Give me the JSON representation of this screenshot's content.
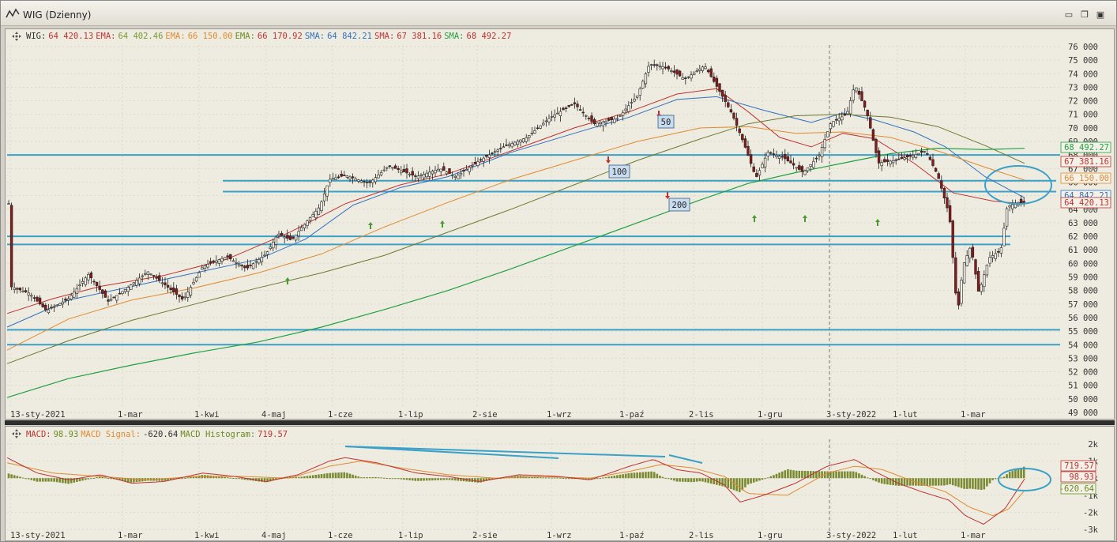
{
  "window": {
    "title": "WIG (Dzienny)",
    "controls": [
      "minimize",
      "restore",
      "close"
    ]
  },
  "legend_price": [
    {
      "label": "WIG:",
      "value": "64 420.13",
      "color": "#c03030",
      "labelColor": "#303030"
    },
    {
      "label": "EMA:",
      "value": "64 402.46",
      "color": "#7a9a30",
      "labelColor": "#c03030"
    },
    {
      "label": "EMA:",
      "value": "66 150.00",
      "color": "#e08a30",
      "labelColor": "#e08a30"
    },
    {
      "label": "EMA:",
      "value": "66 170.92",
      "color": "#c03030",
      "labelColor": "#6a8a20"
    },
    {
      "label": "SMA:",
      "value": "64 842.21",
      "color": "#3070c0",
      "labelColor": "#3070c0"
    },
    {
      "label": "SMA:",
      "value": "67 381.16",
      "color": "#c03030",
      "labelColor": "#c03030"
    },
    {
      "label": "SMA:",
      "value": "68 492.27",
      "color": "#c03030",
      "labelColor": "#20a040"
    }
  ],
  "legend_macd": [
    {
      "label": "MACD:",
      "value": "98.93",
      "color": "#6a8a20",
      "labelColor": "#c03030"
    },
    {
      "label": "MACD Signal:",
      "value": "-620.64",
      "color": "#303030",
      "labelColor": "#e08a30"
    },
    {
      "label": "MACD Histogram:",
      "value": "719.57",
      "color": "#c03030",
      "labelColor": "#6a8a20"
    }
  ],
  "x_tick_labels": [
    "13-sty-2021",
    "1-mar",
    "1-kwi",
    "4-maj",
    "1-cze",
    "1-lip",
    "2-sie",
    "1-wrz",
    "1-paź",
    "2-lis",
    "1-gru",
    "3-sty-2022",
    "1-lut",
    "1-mar"
  ],
  "price_axis_labels": [
    "76 000",
    "75 000",
    "74 000",
    "73 000",
    "72 000",
    "71 000",
    "70 000",
    "69 000",
    "68 000",
    "67 000",
    "66 000",
    "65 000",
    "64 000",
    "63 000",
    "62 000",
    "61 000",
    "60 000",
    "59 000",
    "58 000",
    "57 000",
    "56 000",
    "55 000",
    "54 000",
    "53 000",
    "52 000",
    "51 000",
    "50 000",
    "49 000"
  ],
  "macd_axis_labels": [
    "2k",
    "1k",
    "0k",
    "-1k",
    "-2k",
    "-3k"
  ],
  "price_badges": [
    {
      "text": "68 492.27",
      "color": "#20a040"
    },
    {
      "text": "67 381.16",
      "color": "#c03030"
    },
    {
      "text": "66 150.00",
      "color": "#e08a30"
    },
    {
      "text": "64 842.21",
      "color": "#3070c0"
    },
    {
      "text": "64 420.13",
      "color": "#c03030"
    }
  ],
  "macd_badges": [
    {
      "text": "719.57",
      "color": "#c03030"
    },
    {
      "text": "98.93",
      "color": "#c03030"
    },
    {
      "text": "-620.64",
      "color": "#6a8a20"
    }
  ],
  "annotations": [
    {
      "text": "50"
    },
    {
      "text": "100"
    },
    {
      "text": "200"
    }
  ],
  "chart_data": [
    {
      "type": "line",
      "subtype": "candlestick",
      "series": [
        {
          "name": "WIG",
          "points": [
            [
              "13-sty-2021",
              58000
            ],
            [
              "1-mar",
              58500
            ],
            [
              "1-kwi",
              59700
            ],
            [
              "4-maj",
              61000
            ],
            [
              "1-cze",
              65800
            ],
            [
              "1-lip",
              66000
            ],
            [
              "2-sie",
              68200
            ],
            [
              "1-wrz",
              71500
            ],
            [
              "1-paź",
              74500
            ],
            [
              "2-lis",
              74200
            ],
            [
              "1-gru",
              68300
            ],
            [
              "3-sty-2022",
              72500
            ],
            [
              "1-lut",
              68000
            ],
            [
              "1-mar",
              59000
            ],
            [
              "end",
              64420
            ]
          ]
        },
        {
          "name": "SMA",
          "value_last": 64842.21
        },
        {
          "name": "SMA",
          "value_last": 67381.16
        },
        {
          "name": "SMA",
          "value_last": 68492.27
        },
        {
          "name": "EMA",
          "value_last": 66150.0
        }
      ],
      "horizontal_levels": [
        68000,
        66100,
        65300,
        62000,
        61400,
        55100,
        54000
      ],
      "ylim": [
        49000,
        76000
      ],
      "grid": true
    },
    {
      "type": "bar",
      "subtype": "macd",
      "series": [
        {
          "name": "MACD",
          "value_last": 98.93
        },
        {
          "name": "MACD Signal",
          "value_last": -620.64
        },
        {
          "name": "MACD Histogram",
          "value_last": 719.57
        }
      ],
      "ylim": [
        -3000,
        2000
      ],
      "grid": true
    }
  ]
}
